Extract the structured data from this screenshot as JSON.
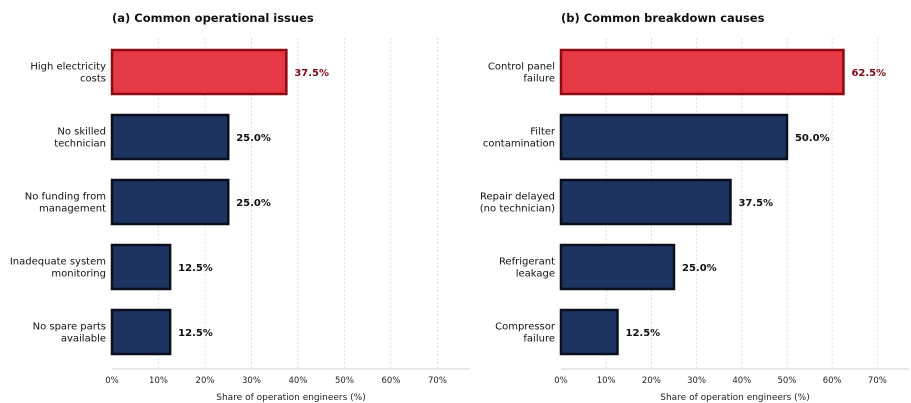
{
  "chart_data": [
    {
      "type": "bar",
      "orientation": "horizontal",
      "title": "(a) Common operational issues",
      "xlabel": "Share of operation engineers (%)",
      "ylabel": "",
      "xlim": [
        0,
        77
      ],
      "xticks": [
        0,
        10,
        20,
        30,
        40,
        50,
        60,
        70
      ],
      "grid": true,
      "categories": [
        [
          "High electricity",
          "costs"
        ],
        [
          "No skilled",
          "technician"
        ],
        [
          "No funding from",
          "management"
        ],
        [
          "Inadequate system",
          "monitoring"
        ],
        [
          "No spare parts",
          "available"
        ]
      ],
      "values": [
        37.5,
        25.0,
        25.0,
        12.5,
        12.5
      ],
      "value_labels": [
        "37.5%",
        "25.0%",
        "25.0%",
        "12.5%",
        "12.5%"
      ],
      "highlight_index": 0
    },
    {
      "type": "bar",
      "orientation": "horizontal",
      "title": "(b) Common breakdown causes",
      "xlabel": "Share of operation engineers (%)",
      "ylabel": "",
      "xlim": [
        0,
        77
      ],
      "xticks": [
        0,
        10,
        20,
        30,
        40,
        50,
        60,
        70
      ],
      "grid": true,
      "categories": [
        [
          "Control panel",
          "failure"
        ],
        [
          "Filter",
          "contamination"
        ],
        [
          "Repair delayed",
          "(no technician)"
        ],
        [
          "Refrigerant",
          "leakage"
        ],
        [
          "Compressor",
          "failure"
        ]
      ],
      "values": [
        62.5,
        50.0,
        37.5,
        25.0,
        12.5
      ],
      "value_labels": [
        "62.5%",
        "50.0%",
        "37.5%",
        "25.0%",
        "12.5%"
      ],
      "highlight_index": 0
    }
  ],
  "colors": {
    "highlight_fill": "#e63946",
    "highlight_stroke": "#8b0a14",
    "highlight_label": "#7a0b16",
    "bar_fill": "#1d3461",
    "bar_stroke": "#0a0f1e",
    "label": "#111111"
  }
}
